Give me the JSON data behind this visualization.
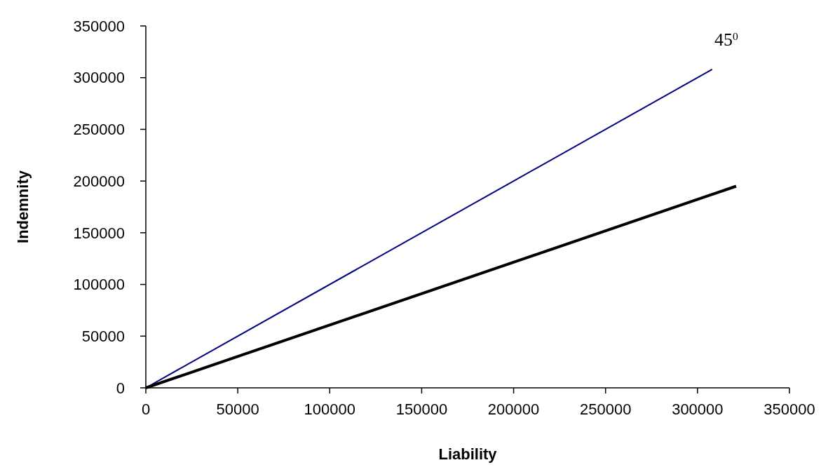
{
  "chart_data": {
    "type": "line",
    "xlabel": "Liability",
    "ylabel": "Indemnity",
    "xlim": [
      0,
      350000
    ],
    "xticks": [
      0,
      50000,
      100000,
      150000,
      200000,
      250000,
      300000,
      350000
    ],
    "ylim": [
      0,
      350000
    ],
    "yticks": [
      0,
      50000,
      100000,
      150000,
      200000,
      250000,
      300000,
      350000
    ],
    "marker": "none",
    "line_style": "solid",
    "series": [
      {
        "color": "#000080",
        "x": [
          0,
          308000
        ],
        "values": [
          0,
          308000
        ]
      },
      {
        "color": "#000000",
        "x": [
          0,
          321000
        ],
        "values": [
          0,
          195000
        ]
      }
    ],
    "annotations": [
      "45$^{0}$"
    ]
  }
}
